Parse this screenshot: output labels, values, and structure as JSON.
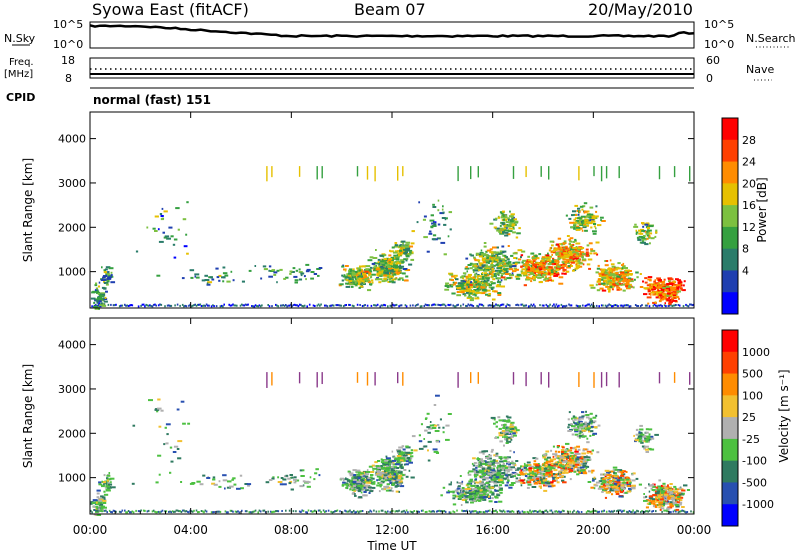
{
  "header": {
    "station": "Syowa East (fitACF)",
    "beam": "Beam 07",
    "date": "20/May/2010"
  },
  "top_panels": {
    "nsky_label": "N.Sky",
    "nsearch_label": "N.Search",
    "noise_ticks": [
      "10^5",
      "10^0"
    ],
    "freq_label_line1": "Freq.",
    "freq_label_line2": "[MHz]",
    "freq_ticks": [
      "18",
      "8"
    ],
    "nave_label": "Nave",
    "nave_ticks": [
      "60",
      "0"
    ],
    "cpid_label": "CPID",
    "cpid_value": "normal (fast) 151"
  },
  "chart_data": [
    {
      "type": "heatmap",
      "name_panel": "power",
      "ylabel": "Slant Range [km]",
      "y_ticks": [
        1000,
        2000,
        3000,
        4000
      ],
      "ylim": [
        180,
        4600
      ],
      "xlim_hours": [
        0,
        24
      ],
      "colorbar_label": "Power [dB]",
      "colorbar_ticks": [
        "28",
        "24",
        "20",
        "16",
        "12",
        "8",
        "4"
      ],
      "colors": [
        "#0000ff",
        "#1f3fb0",
        "#2a7c6a",
        "#35a040",
        "#7cc040",
        "#e6c000",
        "#ff8c00",
        "#ff4000",
        "#ff0000"
      ]
    },
    {
      "type": "heatmap",
      "name_panel": "velocity",
      "ylabel": "Slant Range [km]",
      "y_ticks": [
        1000,
        2000,
        3000,
        4000
      ],
      "ylim": [
        180,
        4600
      ],
      "xlim_hours": [
        0,
        24
      ],
      "colorbar_label": "Velocity [m s⁻¹]",
      "colorbar_ticks": [
        "1000",
        "500",
        "100",
        "25",
        "-25",
        "-100",
        "-500",
        "-1000"
      ],
      "colors": [
        "#0000ff",
        "#2850b0",
        "#2f7a60",
        "#4cc040",
        "#b0b0b0",
        "#f2c030",
        "#ff8c00",
        "#ff4000",
        "#ff0000"
      ]
    }
  ],
  "x_axis": {
    "ticks": [
      "00:00",
      "04:00",
      "08:00",
      "12:00",
      "16:00",
      "20:00",
      "00:00"
    ],
    "label": "Time UT"
  }
}
